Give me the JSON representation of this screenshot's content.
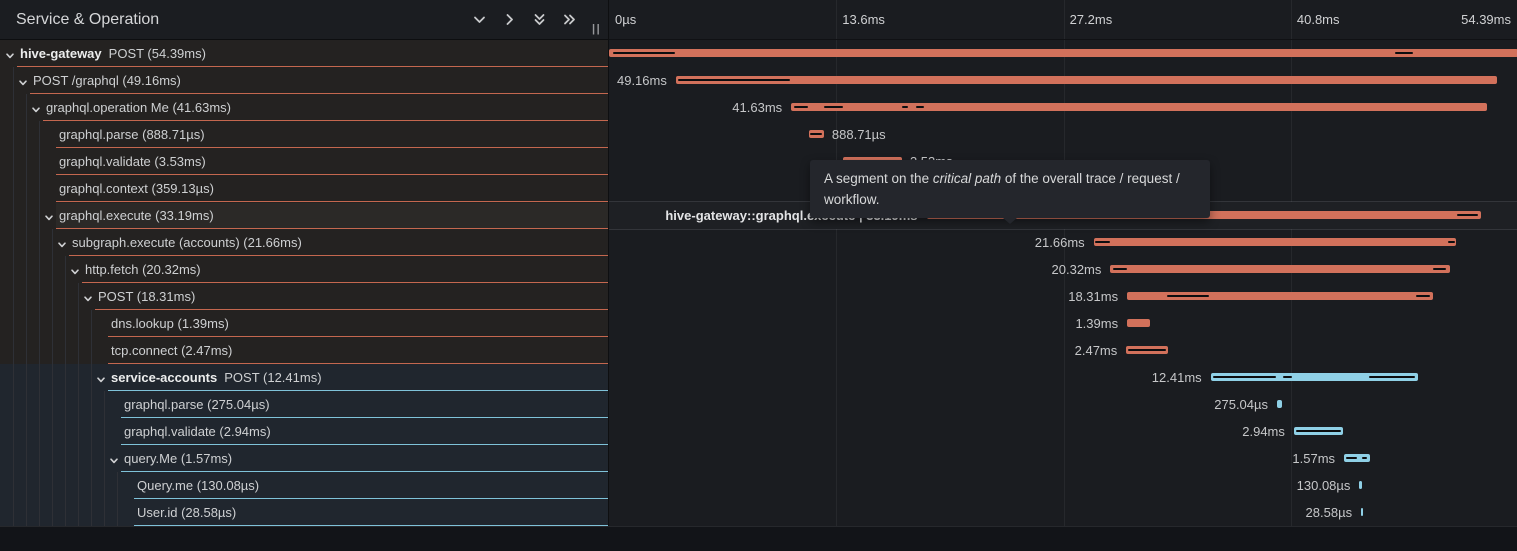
{
  "header": {
    "title": "Service & Operation",
    "icons": [
      "chevron-down-icon",
      "chevron-right-icon",
      "collapse-all-icon",
      "expand-all-icon"
    ],
    "resize_handle": "||"
  },
  "timeline": {
    "total_ms": 54.39,
    "ticks": [
      {
        "label": "0µs",
        "ms": 0,
        "align": "left"
      },
      {
        "label": "13.6ms",
        "ms": 13.6,
        "align": "left"
      },
      {
        "label": "27.2ms",
        "ms": 27.2,
        "align": "left"
      },
      {
        "label": "40.8ms",
        "ms": 40.8,
        "align": "left"
      },
      {
        "label": "54.39ms",
        "ms": 54.39,
        "align": "right"
      }
    ],
    "gridlines_ms": [
      13.6,
      27.2,
      40.8
    ]
  },
  "colors": {
    "salmon": "#d2715b",
    "salmon_line": "#c4674f",
    "blue": "#8fd0e6",
    "blue_line": "#7fc2d9",
    "critical": "#0c0d0f"
  },
  "tooltip": {
    "prefix": "A segment on the ",
    "emphasis": "critical path",
    "suffix": " of the overall trace / request / workflow."
  },
  "rows": [
    {
      "level": 0,
      "service": "hive-gateway",
      "name": "POST (54.39ms)",
      "color": "salmon",
      "expandable": true,
      "bar": {
        "start_ms": 0,
        "duration_ms": 54.39
      },
      "label": null,
      "critical": [
        [
          0.25,
          3.95
        ],
        [
          47.05,
          48.1
        ]
      ]
    },
    {
      "level": 1,
      "name": "POST /graphql (49.16ms)",
      "color": "salmon",
      "expandable": true,
      "bar": {
        "start_ms": 4.0,
        "duration_ms": 49.16
      },
      "label": {
        "text": "49.16ms",
        "side": "left"
      },
      "critical": [
        [
          4.15,
          10.85
        ]
      ]
    },
    {
      "level": 2,
      "name": "graphql.operation Me (41.63ms)",
      "color": "salmon",
      "expandable": true,
      "bar": {
        "start_ms": 10.9,
        "duration_ms": 41.63
      },
      "label": {
        "text": "41.63ms",
        "side": "left"
      },
      "critical": [
        [
          11.05,
          11.9
        ],
        [
          12.85,
          14.0
        ],
        [
          17.55,
          17.9
        ],
        [
          18.35,
          18.85
        ]
      ]
    },
    {
      "level": 3,
      "name": "graphql.parse (888.71µs)",
      "color": "salmon",
      "expandable": false,
      "bar": {
        "start_ms": 11.97,
        "duration_ms": 0.88871
      },
      "label": {
        "text": "888.71µs",
        "side": "right"
      },
      "critical": [
        [
          12.05,
          12.72
        ]
      ]
    },
    {
      "level": 3,
      "name": "graphql.validate (3.53ms)",
      "color": "salmon",
      "expandable": false,
      "bar": {
        "start_ms": 14.0,
        "duration_ms": 3.53
      },
      "label": {
        "text": "3.53ms",
        "side": "right"
      },
      "critical": []
    },
    {
      "level": 3,
      "name": "graphql.context (359.13µs)",
      "color": "salmon",
      "expandable": false,
      "bar": {
        "start_ms": 14.25,
        "duration_ms": 0.35913
      },
      "label": {
        "text": "359.13µs",
        "side": "right"
      },
      "critical": []
    },
    {
      "level": 3,
      "name": "graphql.execute (33.19ms)",
      "color": "salmon",
      "expandable": true,
      "hovered": true,
      "bar": {
        "start_ms": 19.0,
        "duration_ms": 33.19
      },
      "hover_label": "hive-gateway::graphql.execute | 33.19ms",
      "critical": [
        [
          19.25,
          28.9
        ],
        [
          50.75,
          52.0
        ]
      ]
    },
    {
      "level": 4,
      "name": "subgraph.execute (accounts) (21.66ms)",
      "color": "salmon",
      "expandable": true,
      "bar": {
        "start_ms": 29.0,
        "duration_ms": 21.66
      },
      "label": {
        "text": "21.66ms",
        "side": "left"
      },
      "critical": [
        [
          29.1,
          29.95
        ],
        [
          50.2,
          50.6
        ]
      ]
    },
    {
      "level": 5,
      "name": "http.fetch (20.32ms)",
      "color": "salmon",
      "expandable": true,
      "bar": {
        "start_ms": 30.0,
        "duration_ms": 20.32
      },
      "label": {
        "text": "20.32ms",
        "side": "left"
      },
      "critical": [
        [
          30.15,
          31.0
        ],
        [
          49.3,
          50.1
        ]
      ]
    },
    {
      "level": 6,
      "name": "POST (18.31ms)",
      "color": "salmon",
      "expandable": true,
      "bar": {
        "start_ms": 31.0,
        "duration_ms": 18.31
      },
      "label": {
        "text": "18.31ms",
        "side": "left"
      },
      "critical": [
        [
          33.4,
          35.9
        ],
        [
          48.3,
          49.15
        ]
      ]
    },
    {
      "level": 7,
      "name": "dns.lookup (1.39ms)",
      "color": "salmon",
      "expandable": false,
      "bar": {
        "start_ms": 31.0,
        "duration_ms": 1.39
      },
      "label": {
        "text": "1.39ms",
        "side": "left"
      },
      "critical": []
    },
    {
      "level": 7,
      "name": "tcp.connect (2.47ms)",
      "color": "salmon",
      "expandable": false,
      "bar": {
        "start_ms": 30.95,
        "duration_ms": 2.47
      },
      "label": {
        "text": "2.47ms",
        "side": "left"
      },
      "critical": [
        [
          31.05,
          33.3
        ]
      ]
    },
    {
      "level": 7,
      "service": "service-accounts",
      "name": "POST (12.41ms)",
      "color": "blue",
      "expandable": true,
      "bar": {
        "start_ms": 36.0,
        "duration_ms": 12.41
      },
      "label": {
        "text": "12.41ms",
        "side": "left"
      },
      "critical": [
        [
          36.15,
          39.9
        ],
        [
          40.3,
          40.85
        ],
        [
          45.5,
          48.25
        ]
      ]
    },
    {
      "level": 8,
      "name": "graphql.parse (275.04µs)",
      "color": "blue",
      "expandable": false,
      "bar": {
        "start_ms": 39.97,
        "duration_ms": 0.27504
      },
      "label": {
        "text": "275.04µs",
        "side": "left"
      },
      "critical": []
    },
    {
      "level": 8,
      "name": "graphql.validate (2.94ms)",
      "color": "blue",
      "expandable": false,
      "bar": {
        "start_ms": 40.98,
        "duration_ms": 2.94
      },
      "label": {
        "text": "2.94ms",
        "side": "left"
      },
      "critical": [
        [
          41.1,
          43.8
        ]
      ]
    },
    {
      "level": 8,
      "name": "query.Me (1.57ms)",
      "color": "blue",
      "expandable": true,
      "bar": {
        "start_ms": 43.98,
        "duration_ms": 1.57
      },
      "label": {
        "text": "1.57ms",
        "side": "left"
      },
      "critical": [
        [
          44.1,
          44.75
        ],
        [
          45.05,
          45.35
        ]
      ]
    },
    {
      "level": 9,
      "name": "Query.me (130.08µs)",
      "color": "blue",
      "expandable": false,
      "bar": {
        "start_ms": 44.9,
        "duration_ms": 0.13008
      },
      "label": {
        "text": "130.08µs",
        "side": "left"
      },
      "critical": []
    },
    {
      "level": 9,
      "name": "User.id (28.58µs)",
      "color": "blue",
      "expandable": false,
      "bar": {
        "start_ms": 45.0,
        "duration_ms": 0.02858
      },
      "label": {
        "text": "28.58µs",
        "side": "left"
      },
      "critical": []
    }
  ]
}
